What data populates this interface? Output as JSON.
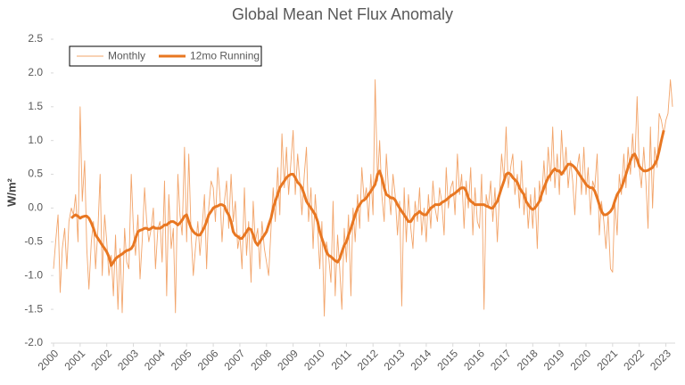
{
  "chart_data": {
    "type": "line",
    "title": "Global Mean Net Flux Anomaly",
    "y_label": "W/m²",
    "x": [
      2000,
      2000.08,
      2000.17,
      2000.25,
      2000.33,
      2000.42,
      2000.5,
      2000.58,
      2000.67,
      2000.75,
      2000.83,
      2000.92,
      2001,
      2001.08,
      2001.17,
      2001.25,
      2001.33,
      2001.42,
      2001.5,
      2001.58,
      2001.67,
      2001.75,
      2001.83,
      2001.92,
      2002,
      2002.08,
      2002.17,
      2002.25,
      2002.33,
      2002.42,
      2002.5,
      2002.58,
      2002.67,
      2002.75,
      2002.83,
      2002.92,
      2003,
      2003.08,
      2003.17,
      2003.25,
      2003.33,
      2003.42,
      2003.5,
      2003.58,
      2003.67,
      2003.75,
      2003.83,
      2003.92,
      2004,
      2004.08,
      2004.17,
      2004.25,
      2004.33,
      2004.42,
      2004.5,
      2004.58,
      2004.67,
      2004.75,
      2004.83,
      2004.92,
      2005,
      2005.08,
      2005.17,
      2005.25,
      2005.33,
      2005.42,
      2005.5,
      2005.58,
      2005.67,
      2005.75,
      2005.83,
      2005.92,
      2006,
      2006.08,
      2006.17,
      2006.25,
      2006.33,
      2006.42,
      2006.5,
      2006.58,
      2006.67,
      2006.75,
      2006.83,
      2006.92,
      2007,
      2007.08,
      2007.17,
      2007.25,
      2007.33,
      2007.42,
      2007.5,
      2007.58,
      2007.67,
      2007.75,
      2007.83,
      2007.92,
      2008,
      2008.08,
      2008.17,
      2008.25,
      2008.33,
      2008.42,
      2008.5,
      2008.58,
      2008.67,
      2008.75,
      2008.83,
      2008.92,
      2009,
      2009.08,
      2009.17,
      2009.25,
      2009.33,
      2009.42,
      2009.5,
      2009.58,
      2009.67,
      2009.75,
      2009.83,
      2009.92,
      2010,
      2010.08,
      2010.17,
      2010.25,
      2010.33,
      2010.42,
      2010.5,
      2010.58,
      2010.67,
      2010.75,
      2010.83,
      2010.92,
      2011,
      2011.08,
      2011.17,
      2011.25,
      2011.33,
      2011.42,
      2011.5,
      2011.58,
      2011.67,
      2011.75,
      2011.83,
      2011.92,
      2012,
      2012.08,
      2012.17,
      2012.25,
      2012.33,
      2012.42,
      2012.5,
      2012.58,
      2012.67,
      2012.75,
      2012.83,
      2012.92,
      2013,
      2013.08,
      2013.17,
      2013.25,
      2013.33,
      2013.42,
      2013.5,
      2013.58,
      2013.67,
      2013.75,
      2013.83,
      2013.92,
      2014,
      2014.08,
      2014.17,
      2014.25,
      2014.33,
      2014.42,
      2014.5,
      2014.58,
      2014.67,
      2014.75,
      2014.83,
      2014.92,
      2015,
      2015.08,
      2015.17,
      2015.25,
      2015.33,
      2015.42,
      2015.5,
      2015.58,
      2015.67,
      2015.75,
      2015.83,
      2015.92,
      2016,
      2016.08,
      2016.17,
      2016.25,
      2016.33,
      2016.42,
      2016.5,
      2016.58,
      2016.67,
      2016.75,
      2016.83,
      2016.92,
      2017,
      2017.08,
      2017.17,
      2017.25,
      2017.33,
      2017.42,
      2017.5,
      2017.58,
      2017.67,
      2017.75,
      2017.83,
      2017.92,
      2018,
      2018.08,
      2018.17,
      2018.25,
      2018.33,
      2018.42,
      2018.5,
      2018.58,
      2018.67,
      2018.75,
      2018.83,
      2018.92,
      2019,
      2019.08,
      2019.17,
      2019.25,
      2019.33,
      2019.42,
      2019.5,
      2019.58,
      2019.67,
      2019.75,
      2019.83,
      2019.92,
      2020,
      2020.08,
      2020.17,
      2020.25,
      2020.33,
      2020.42,
      2020.5,
      2020.58,
      2020.67,
      2020.75,
      2020.83,
      2020.92,
      2021,
      2021.08,
      2021.17,
      2021.25,
      2021.33,
      2021.42,
      2021.5,
      2021.58,
      2021.67,
      2021.75,
      2021.83,
      2021.92,
      2022,
      2022.08,
      2022.17,
      2022.25,
      2022.33,
      2022.42,
      2022.5,
      2022.58,
      2022.67,
      2022.75,
      2022.83,
      2022.92,
      2023,
      2023.08,
      2023.17,
      2023.25
    ],
    "series": [
      {
        "name": "Monthly",
        "color": "#f2a46a",
        "width": 0.9,
        "values": [
          -0.9,
          -0.5,
          -0.1,
          -1.25,
          -0.6,
          -0.3,
          -0.9,
          -0.2,
          0.0,
          -0.1,
          0.2,
          -0.5,
          1.5,
          0.1,
          0.7,
          -0.6,
          -1.2,
          -0.5,
          -0.2,
          -0.9,
          -0.3,
          0.5,
          -1.0,
          -0.1,
          -0.5,
          -1.0,
          -0.7,
          -1.3,
          -0.4,
          -1.5,
          -0.6,
          -1.55,
          -0.3,
          -0.8,
          -0.9,
          0.5,
          -0.3,
          -0.7,
          -0.1,
          -1.05,
          -0.5,
          0.3,
          -0.2,
          -0.5,
          -0.3,
          0.0,
          -0.9,
          -0.3,
          -0.2,
          -0.8,
          0.4,
          -1.3,
          0.2,
          -0.6,
          -0.3,
          -1.55,
          0.5,
          -0.1,
          -0.4,
          0.9,
          -0.5,
          0.8,
          -0.4,
          -1.0,
          -0.6,
          -0.2,
          -0.7,
          -0.3,
          0.2,
          -0.9,
          0.0,
          0.4,
          0.3,
          -0.2,
          0.6,
          0.2,
          -0.5,
          0.1,
          0.4,
          -0.3,
          0.5,
          -0.2,
          0.1,
          -0.6,
          -0.4,
          -0.9,
          0.3,
          -0.7,
          -0.2,
          -1.1,
          0.1,
          -0.5,
          -0.3,
          -0.9,
          -0.2,
          -0.6,
          -0.8,
          -1.0,
          -0.3,
          0.3,
          -0.2,
          0.6,
          -0.1,
          1.1,
          0.3,
          0.9,
          0.2,
          0.7,
          1.15,
          0.2,
          0.8,
          0.4,
          -0.1,
          0.5,
          0.9,
          -0.2,
          0.3,
          -0.6,
          0.2,
          -0.3,
          -0.9,
          -0.2,
          -1.6,
          -0.5,
          -0.7,
          -1.1,
          0.1,
          -1.3,
          -0.4,
          -0.9,
          -1.5,
          -0.3,
          -0.8,
          -0.1,
          -1.3,
          0.0,
          -0.5,
          0.2,
          -0.3,
          0.6,
          0.1,
          0.3,
          -0.2,
          0.5,
          -0.1,
          1.9,
          0.4,
          1.0,
          0.2,
          -0.2,
          0.8,
          0.3,
          -0.1,
          0.5,
          0.2,
          -0.4,
          0.1,
          -1.45,
          0.3,
          -0.5,
          0.2,
          -0.3,
          -0.6,
          0.1,
          -0.2,
          0.3,
          -0.4,
          0.0,
          -0.5,
          0.2,
          -0.3,
          0.4,
          0.0,
          -0.2,
          0.3,
          0.1,
          -0.4,
          0.6,
          0.0,
          0.3,
          0.4,
          -0.1,
          0.8,
          0.2,
          0.5,
          -0.3,
          0.4,
          0.0,
          0.6,
          -0.4,
          0.3,
          -0.2,
          -0.3,
          0.5,
          -1.5,
          0.2,
          0.0,
          0.4,
          -0.2,
          0.3,
          -0.5,
          0.2,
          0.8,
          0.4,
          1.2,
          0.3,
          0.6,
          0.8,
          0.2,
          0.5,
          0.0,
          0.7,
          -0.1,
          0.3,
          -0.3,
          0.2,
          -0.3,
          0.3,
          -0.6,
          0.4,
          0.1,
          0.7,
          0.2,
          0.9,
          0.4,
          1.2,
          0.3,
          0.8,
          0.2,
          1.15,
          0.5,
          0.9,
          0.3,
          0.7,
          0.4,
          -0.1,
          0.6,
          0.8,
          0.2,
          0.9,
          0.2,
          0.6,
          -0.1,
          0.4,
          0.3,
          0.8,
          -0.4,
          0.1,
          -0.2,
          -0.6,
          -0.1,
          -0.9,
          -0.95,
          0.1,
          -0.4,
          0.5,
          0.2,
          0.8,
          0.3,
          0.9,
          0.5,
          1.1,
          0.6,
          1.65,
          0.6,
          0.3,
          0.9,
          0.4,
          -0.3,
          1.2,
          0.0,
          0.9,
          0.6,
          1.4,
          1.3,
          1.1,
          1.3,
          1.4,
          1.9,
          1.5
        ]
      },
      {
        "name": "12mo Running",
        "color": "#e87722",
        "width": 3,
        "values": [
          null,
          null,
          null,
          null,
          null,
          null,
          null,
          null,
          -0.15,
          -0.12,
          -0.1,
          -0.12,
          -0.15,
          -0.13,
          -0.12,
          -0.12,
          -0.15,
          -0.22,
          -0.3,
          -0.4,
          -0.45,
          -0.5,
          -0.55,
          -0.6,
          -0.65,
          -0.72,
          -0.85,
          -0.8,
          -0.75,
          -0.72,
          -0.7,
          -0.68,
          -0.65,
          -0.63,
          -0.62,
          -0.6,
          -0.55,
          -0.45,
          -0.35,
          -0.33,
          -0.32,
          -0.3,
          -0.3,
          -0.32,
          -0.3,
          -0.28,
          -0.3,
          -0.3,
          -0.3,
          -0.28,
          -0.25,
          -0.25,
          -0.22,
          -0.2,
          -0.2,
          -0.22,
          -0.25,
          -0.22,
          -0.18,
          -0.12,
          -0.1,
          -0.2,
          -0.3,
          -0.35,
          -0.38,
          -0.4,
          -0.4,
          -0.35,
          -0.28,
          -0.2,
          -0.1,
          -0.05,
          0.0,
          0.02,
          0.03,
          0.05,
          0.05,
          0.03,
          -0.05,
          -0.1,
          -0.2,
          -0.35,
          -0.4,
          -0.42,
          -0.45,
          -0.45,
          -0.4,
          -0.35,
          -0.3,
          -0.32,
          -0.4,
          -0.5,
          -0.55,
          -0.5,
          -0.45,
          -0.4,
          -0.35,
          -0.25,
          -0.15,
          0.0,
          0.1,
          0.2,
          0.3,
          0.35,
          0.4,
          0.45,
          0.48,
          0.5,
          0.5,
          0.45,
          0.38,
          0.35,
          0.3,
          0.2,
          0.1,
          0.05,
          0.0,
          -0.05,
          -0.1,
          -0.2,
          -0.35,
          -0.45,
          -0.55,
          -0.65,
          -0.7,
          -0.72,
          -0.75,
          -0.78,
          -0.8,
          -0.75,
          -0.65,
          -0.55,
          -0.5,
          -0.4,
          -0.3,
          -0.2,
          -0.1,
          0.0,
          0.05,
          0.1,
          0.12,
          0.15,
          0.2,
          0.25,
          0.3,
          0.35,
          0.5,
          0.55,
          0.45,
          0.3,
          0.2,
          0.18,
          0.15,
          0.15,
          0.12,
          0.05,
          0.0,
          -0.05,
          -0.1,
          -0.15,
          -0.2,
          -0.2,
          -0.15,
          -0.1,
          -0.08,
          -0.05,
          -0.08,
          -0.1,
          -0.1,
          -0.05,
          0.0,
          0.02,
          0.05,
          0.05,
          0.05,
          0.08,
          0.1,
          0.12,
          0.15,
          0.18,
          0.2,
          0.22,
          0.25,
          0.28,
          0.3,
          0.3,
          0.25,
          0.15,
          0.1,
          0.08,
          0.05,
          0.05,
          0.05,
          0.05,
          0.05,
          0.03,
          0.02,
          0.0,
          0.0,
          0.05,
          0.1,
          0.2,
          0.3,
          0.4,
          0.5,
          0.52,
          0.5,
          0.45,
          0.42,
          0.38,
          0.3,
          0.25,
          0.2,
          0.1,
          0.05,
          0.0,
          -0.02,
          0.0,
          0.05,
          0.1,
          0.2,
          0.3,
          0.38,
          0.45,
          0.5,
          0.55,
          0.58,
          0.55,
          0.55,
          0.5,
          0.55,
          0.6,
          0.65,
          0.65,
          0.63,
          0.6,
          0.55,
          0.5,
          0.45,
          0.4,
          0.35,
          0.32,
          0.3,
          0.3,
          0.25,
          0.15,
          0.05,
          -0.05,
          -0.1,
          -0.1,
          -0.08,
          -0.05,
          0.0,
          0.1,
          0.2,
          0.25,
          0.3,
          0.4,
          0.5,
          0.6,
          0.7,
          0.78,
          0.8,
          0.72,
          0.62,
          0.58,
          0.55,
          0.55,
          0.56,
          0.58,
          0.6,
          0.65,
          0.72,
          0.85,
          1.0,
          1.15,
          null,
          null,
          null,
          null
        ]
      }
    ],
    "xlim": [
      2000,
      2023.35
    ],
    "xticks": [
      2000,
      2001,
      2002,
      2003,
      2004,
      2005,
      2006,
      2007,
      2008,
      2009,
      2010,
      2011,
      2012,
      2013,
      2014,
      2015,
      2016,
      2017,
      2018,
      2019,
      2020,
      2021,
      2022,
      2023
    ],
    "ylim": [
      -2.0,
      2.5
    ],
    "yticks": [
      {
        "value": -2,
        "label": "-2.0"
      },
      {
        "value": -1.5,
        "label": "-1.5"
      },
      {
        "value": -1,
        "label": "-1.0"
      },
      {
        "value": -0.5,
        "label": "-0.5"
      },
      {
        "value": 0,
        "label": "0.0"
      },
      {
        "value": 0.5,
        "label": "0.5"
      },
      {
        "value": 1,
        "label": "1.0"
      },
      {
        "value": 1.5,
        "label": "1.5"
      },
      {
        "value": 2,
        "label": "2.0"
      },
      {
        "value": 2.5,
        "label": "2.5"
      }
    ],
    "legend": "upper left"
  }
}
